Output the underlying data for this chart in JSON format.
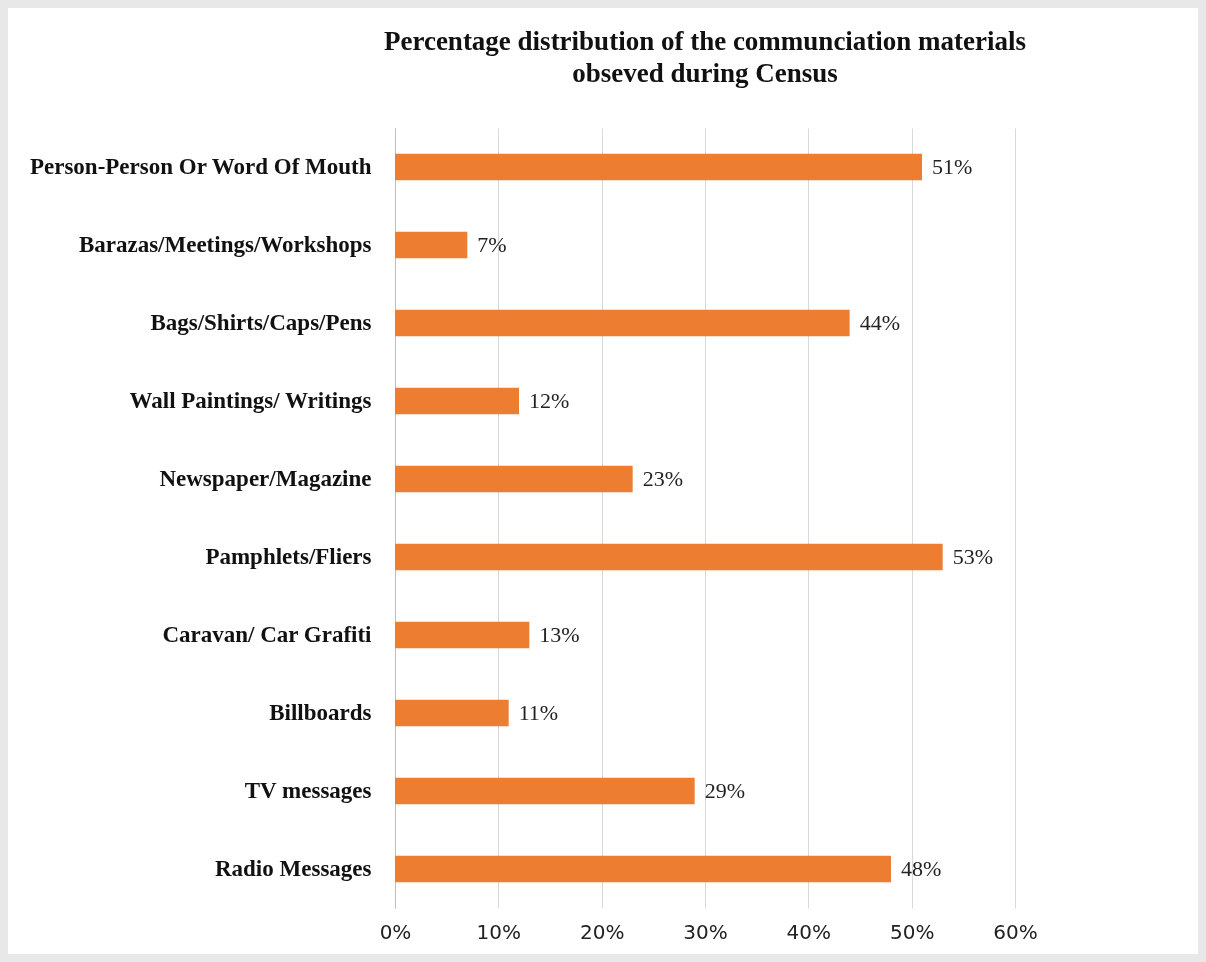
{
  "chart_data": {
    "type": "bar",
    "orientation": "horizontal",
    "title": "Percentage distribution of the communciation materials\nobseved during Census",
    "categories": [
      "Person-Person Or Word Of Mouth",
      "Barazas/Meetings/Workshops",
      "Bags/Shirts/Caps/Pens",
      "Wall Paintings/ Writings",
      "Newspaper/Magazine",
      "Pamphlets/Fliers",
      "Caravan/ Car Grafiti",
      "Billboards",
      "TV messages",
      "Radio Messages"
    ],
    "values": [
      51,
      7,
      44,
      12,
      23,
      53,
      13,
      11,
      29,
      48
    ],
    "value_labels": [
      "51%",
      "7%",
      "44%",
      "12%",
      "23%",
      "53%",
      "13%",
      "11%",
      "29%",
      "48%"
    ],
    "color": "#ed7d31",
    "xlim": [
      0,
      60
    ],
    "xticks": [
      {
        "value": 0,
        "label": "0%"
      },
      {
        "value": 10,
        "label": "10%"
      },
      {
        "value": 20,
        "label": "20%"
      },
      {
        "value": 30,
        "label": "30%"
      },
      {
        "value": 40,
        "label": "40%"
      },
      {
        "value": 50,
        "label": "50%"
      },
      {
        "value": 60,
        "label": "60%"
      }
    ],
    "grid": "x"
  }
}
